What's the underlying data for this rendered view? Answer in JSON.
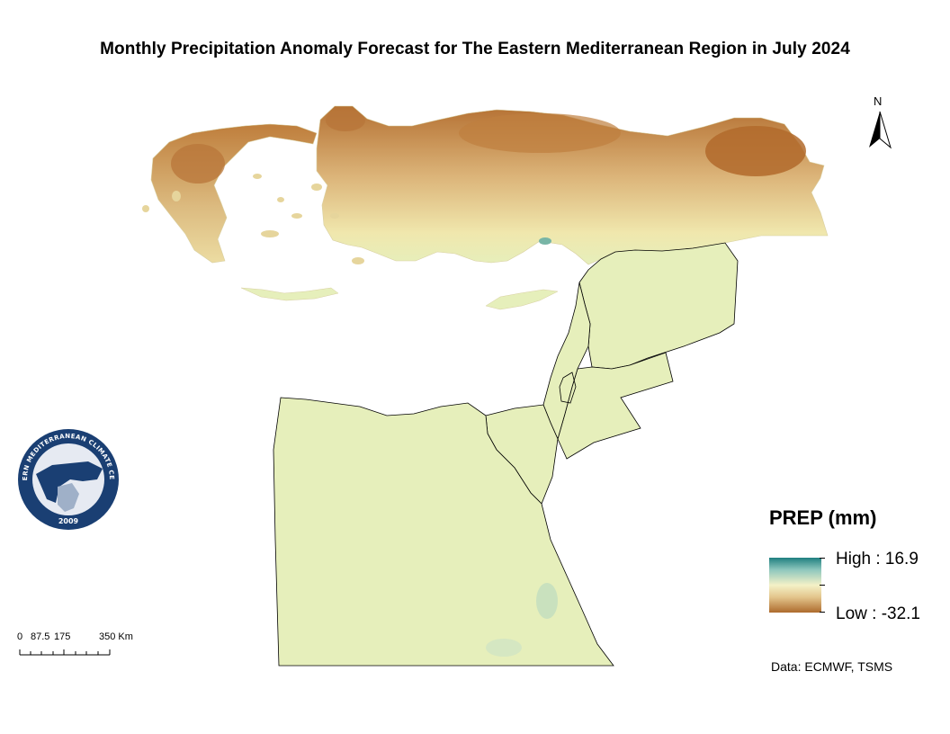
{
  "title": "Monthly Precipitation Anomaly Forecast for The Eastern Mediterranean Region in July 2024",
  "north_arrow": {
    "label": "N",
    "icon": "north-arrow-icon"
  },
  "logo": {
    "text_top": "EASTERN MEDITERRANEAN CLIMATE CENTRE",
    "year": "2009",
    "colors": {
      "ring": "#1a3f73",
      "inner": "#e6eaf2"
    }
  },
  "legend": {
    "title": "PREP (mm)",
    "high_label": "High : 16.9",
    "low_label": "Low : -32.1",
    "high_value": 16.9,
    "low_value": -32.1,
    "colors": {
      "high": "#1f7f80",
      "mid": "#f4f1c7",
      "low": "#ad6b2d"
    }
  },
  "scale_bar": {
    "labels": [
      "0",
      "87.5",
      "175",
      "350 Km"
    ]
  },
  "credit": "Data: ECMWF, TSMS",
  "colors": {
    "dry": "#b57133",
    "neutral": "#e6efbb",
    "wet": "#8bc3b3",
    "border": "#000000"
  }
}
